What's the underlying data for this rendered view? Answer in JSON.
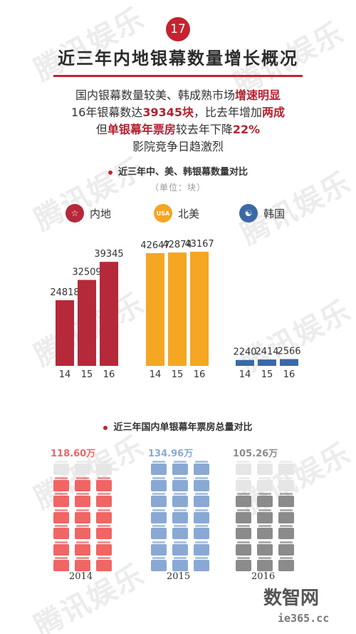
{
  "header": {
    "badge_number": "17",
    "title": "近三年内地银幕数量增长概况"
  },
  "summary": {
    "line1_pre": "国内银幕数量较美、韩成熟市场",
    "line1_em": "增速明显",
    "line2_pre": "16年银幕数达",
    "line2_em1": "39345块",
    "line2_mid": "，比去年增加",
    "line2_em2": "两成",
    "line3_pre": "但",
    "line3_em1": "单银幕年票房",
    "line3_mid": "较去年下降",
    "line3_em2": "22%",
    "line4": "影院竞争日趋激烈"
  },
  "section1": {
    "title": "近三年中、美、韩银幕数量对比",
    "unit": "（单位：块）"
  },
  "section2": {
    "title": "近三年国内单银幕年票房总量对比"
  },
  "watermark": "腾讯娱乐",
  "footer": {
    "logo": "数智网",
    "url": "ie365.cc"
  },
  "colors": {
    "accent": "#c4232f",
    "china": "#b5293a",
    "usa": "#f5a623",
    "korea": "#3c68a6",
    "box2014": "#ef6665",
    "box2015": "#89a9d4",
    "box2016": "#8b8b8b"
  },
  "chart_data": [
    {
      "type": "bar",
      "title": "近三年中、美、韩银幕数量对比",
      "ylabel": "（单位：块）",
      "categories": [
        "14",
        "15",
        "16"
      ],
      "series": [
        {
          "name": "内地",
          "icon": "star-icon",
          "values": [
            24818,
            32509,
            39345
          ]
        },
        {
          "name": "北美",
          "icon": "usa-icon",
          "icon_text": "USA",
          "values": [
            42647,
            42874,
            43167
          ]
        },
        {
          "name": "韩国",
          "icon": "taeguk-icon",
          "values": [
            2240,
            2414,
            2566
          ]
        }
      ]
    },
    {
      "type": "bar",
      "title": "近三年国内单银幕年票房总量对比",
      "categories": [
        "2014",
        "2015",
        "2016"
      ],
      "values": [
        118.6,
        134.96,
        105.26
      ],
      "value_labels": [
        "118.60万",
        "134.96万",
        "105.26万"
      ],
      "legend": "none"
    }
  ]
}
